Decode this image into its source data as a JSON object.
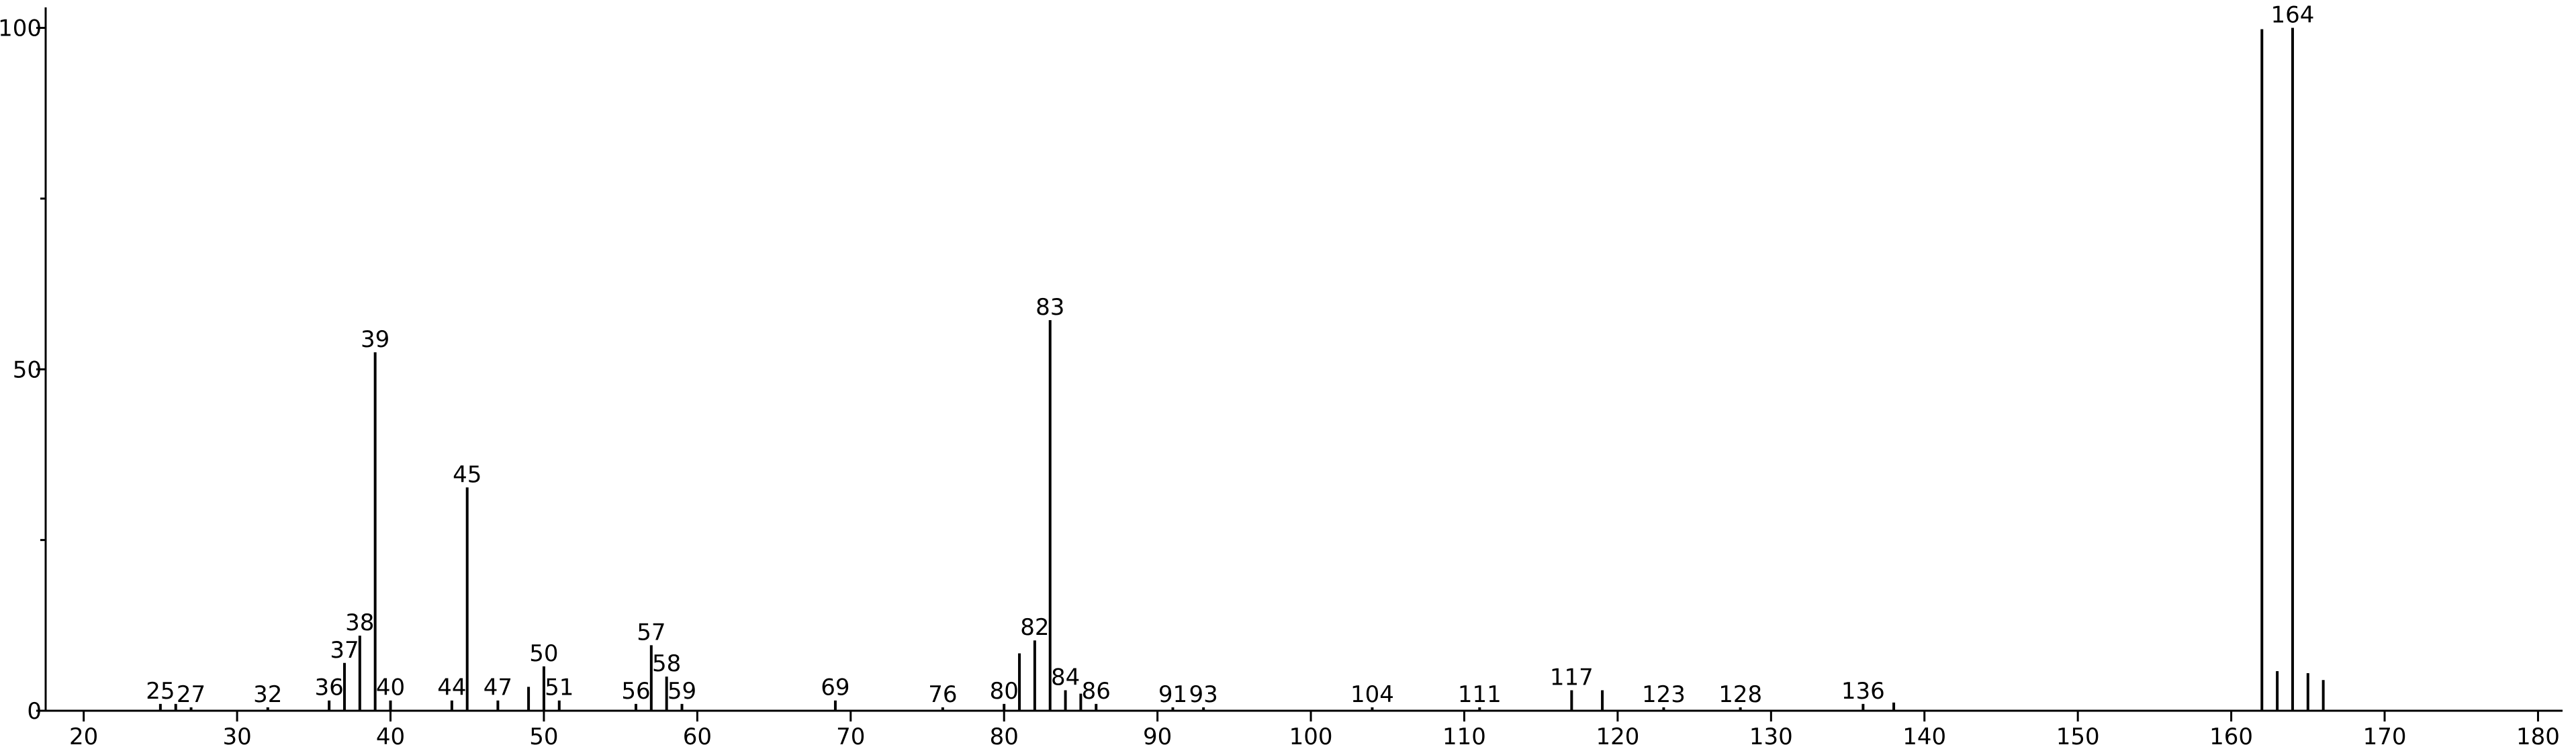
{
  "chart_data": {
    "type": "stick",
    "x": [
      25,
      26,
      27,
      32,
      36,
      37,
      38,
      39,
      40,
      44,
      45,
      47,
      49,
      50,
      51,
      56,
      57,
      58,
      59,
      69,
      76,
      80,
      81,
      82,
      83,
      84,
      85,
      86,
      91,
      93,
      104,
      111,
      117,
      119,
      123,
      128,
      136,
      138,
      162,
      163,
      164,
      165,
      166
    ],
    "values": [
      1,
      1,
      0.5,
      0.5,
      1.5,
      7,
      11,
      52.5,
      1.5,
      1.5,
      32.7,
      1.5,
      3.5,
      6.5,
      1.5,
      1,
      9.6,
      5,
      1,
      1.5,
      0.5,
      1,
      8.4,
      10.3,
      57.2,
      3,
      2.5,
      1,
      0.5,
      0.5,
      0.5,
      0.5,
      3,
      3,
      0.5,
      0.5,
      1,
      1.2,
      99.8,
      5.8,
      100,
      5.5,
      4.5
    ],
    "peak_labels": [
      25,
      null,
      27,
      32,
      36,
      37,
      38,
      39,
      40,
      44,
      45,
      47,
      null,
      50,
      51,
      56,
      57,
      58,
      59,
      69,
      76,
      80,
      null,
      82,
      83,
      84,
      null,
      86,
      91,
      93,
      104,
      111,
      117,
      null,
      123,
      128,
      136,
      null,
      null,
      null,
      164,
      null,
      null
    ],
    "color": "#000000",
    "xlim": [
      17.52,
      181.6
    ],
    "xticks": [
      20,
      30,
      40,
      50,
      60,
      70,
      80,
      90,
      100,
      110,
      120,
      130,
      140,
      150,
      160,
      170,
      180
    ],
    "ylim": [
      0,
      103
    ],
    "yticks": [
      0,
      50,
      100
    ],
    "yminorticks": [
      25,
      75
    ]
  }
}
